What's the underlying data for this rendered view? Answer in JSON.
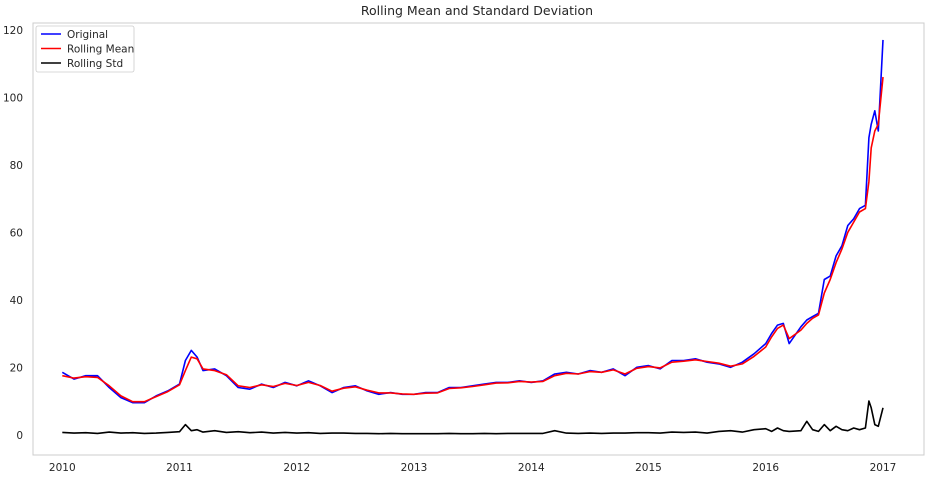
{
  "chart_data": {
    "type": "line",
    "title": "Rolling Mean and Standard Deviation",
    "xlabel": "",
    "ylabel": "",
    "x_ticks": [
      "2010",
      "2011",
      "2012",
      "2013",
      "2014",
      "2015",
      "2016",
      "2017"
    ],
    "y_ticks": [
      "0",
      "20",
      "40",
      "60",
      "80",
      "100",
      "120"
    ],
    "xlim": [
      2009.75,
      2017.35
    ],
    "ylim": [
      -6,
      122
    ],
    "grid": false,
    "legend_position": "top-left",
    "x": [
      2010.0,
      2010.1,
      2010.2,
      2010.3,
      2010.4,
      2010.5,
      2010.6,
      2010.7,
      2010.8,
      2010.9,
      2011.0,
      2011.05,
      2011.1,
      2011.15,
      2011.2,
      2011.3,
      2011.4,
      2011.5,
      2011.6,
      2011.7,
      2011.8,
      2011.9,
      2012.0,
      2012.1,
      2012.2,
      2012.3,
      2012.4,
      2012.5,
      2012.6,
      2012.7,
      2012.8,
      2012.9,
      2013.0,
      2013.1,
      2013.2,
      2013.3,
      2013.4,
      2013.5,
      2013.6,
      2013.7,
      2013.8,
      2013.9,
      2014.0,
      2014.1,
      2014.2,
      2014.3,
      2014.4,
      2014.5,
      2014.6,
      2014.7,
      2014.8,
      2014.9,
      2015.0,
      2015.1,
      2015.2,
      2015.3,
      2015.4,
      2015.5,
      2015.6,
      2015.7,
      2015.8,
      2015.9,
      2016.0,
      2016.05,
      2016.1,
      2016.15,
      2016.2,
      2016.3,
      2016.35,
      2016.4,
      2016.45,
      2016.5,
      2016.55,
      2016.6,
      2016.65,
      2016.7,
      2016.75,
      2016.8,
      2016.85,
      2016.88,
      2016.9,
      2016.93,
      2016.96,
      2017.0
    ],
    "series": [
      {
        "name": "Original",
        "color": "#0000ff",
        "values": [
          18.5,
          16.5,
          17.5,
          17.5,
          14.0,
          11.0,
          9.5,
          9.5,
          11.5,
          13.0,
          15.0,
          22.0,
          25.0,
          23.0,
          19.0,
          19.5,
          17.5,
          14.0,
          13.5,
          15.0,
          14.0,
          15.5,
          14.5,
          16.0,
          14.5,
          12.5,
          14.0,
          14.5,
          13.0,
          12.0,
          12.5,
          12.0,
          12.0,
          12.5,
          12.5,
          14.0,
          14.0,
          14.5,
          15.0,
          15.5,
          15.5,
          16.0,
          15.5,
          16.0,
          18.0,
          18.5,
          18.0,
          19.0,
          18.5,
          19.5,
          17.5,
          20.0,
          20.5,
          19.5,
          22.0,
          22.0,
          22.5,
          21.5,
          21.0,
          20.0,
          21.5,
          24.0,
          27.0,
          30.0,
          32.5,
          33.0,
          27.0,
          32.0,
          34.0,
          35.0,
          36.0,
          46.0,
          47.0,
          53.0,
          56.0,
          62.0,
          64.0,
          67.0,
          68.0,
          88.0,
          92.0,
          96.0,
          90.0,
          117.0
        ]
      },
      {
        "name": "Rolling Mean",
        "color": "#ff0000",
        "values": [
          17.5,
          16.8,
          17.2,
          17.0,
          14.5,
          11.5,
          9.8,
          9.8,
          11.3,
          12.8,
          14.8,
          19.0,
          23.0,
          22.5,
          19.5,
          19.0,
          17.8,
          14.5,
          14.0,
          14.8,
          14.3,
          15.2,
          14.6,
          15.5,
          14.6,
          12.9,
          13.8,
          14.2,
          13.2,
          12.4,
          12.4,
          12.1,
          12.0,
          12.3,
          12.4,
          13.7,
          13.9,
          14.3,
          14.8,
          15.3,
          15.4,
          15.8,
          15.6,
          15.8,
          17.5,
          18.2,
          18.0,
          18.7,
          18.5,
          19.2,
          18.0,
          19.7,
          20.2,
          19.8,
          21.5,
          21.8,
          22.2,
          21.7,
          21.2,
          20.3,
          21.0,
          23.2,
          26.0,
          29.0,
          31.5,
          32.5,
          28.5,
          31.0,
          33.0,
          34.5,
          35.5,
          42.0,
          46.0,
          51.0,
          55.0,
          60.0,
          63.0,
          66.0,
          67.0,
          75.0,
          85.0,
          90.0,
          92.0,
          106.0
        ]
      },
      {
        "name": "Rolling Std",
        "color": "#000000",
        "values": [
          0.7,
          0.5,
          0.6,
          0.4,
          0.8,
          0.5,
          0.6,
          0.4,
          0.5,
          0.7,
          0.9,
          3.0,
          1.2,
          1.5,
          0.8,
          1.2,
          0.7,
          0.9,
          0.6,
          0.8,
          0.5,
          0.7,
          0.5,
          0.6,
          0.4,
          0.5,
          0.5,
          0.4,
          0.4,
          0.3,
          0.4,
          0.3,
          0.3,
          0.3,
          0.3,
          0.4,
          0.3,
          0.3,
          0.4,
          0.3,
          0.4,
          0.4,
          0.4,
          0.4,
          1.2,
          0.5,
          0.4,
          0.5,
          0.4,
          0.5,
          0.5,
          0.6,
          0.6,
          0.5,
          0.8,
          0.7,
          0.8,
          0.5,
          1.0,
          1.2,
          0.8,
          1.5,
          1.8,
          1.0,
          2.0,
          1.2,
          1.0,
          1.2,
          4.0,
          1.5,
          1.0,
          3.0,
          1.2,
          2.5,
          1.5,
          1.2,
          2.0,
          1.5,
          2.0,
          10.0,
          8.0,
          3.0,
          2.5,
          8.0
        ]
      }
    ]
  }
}
